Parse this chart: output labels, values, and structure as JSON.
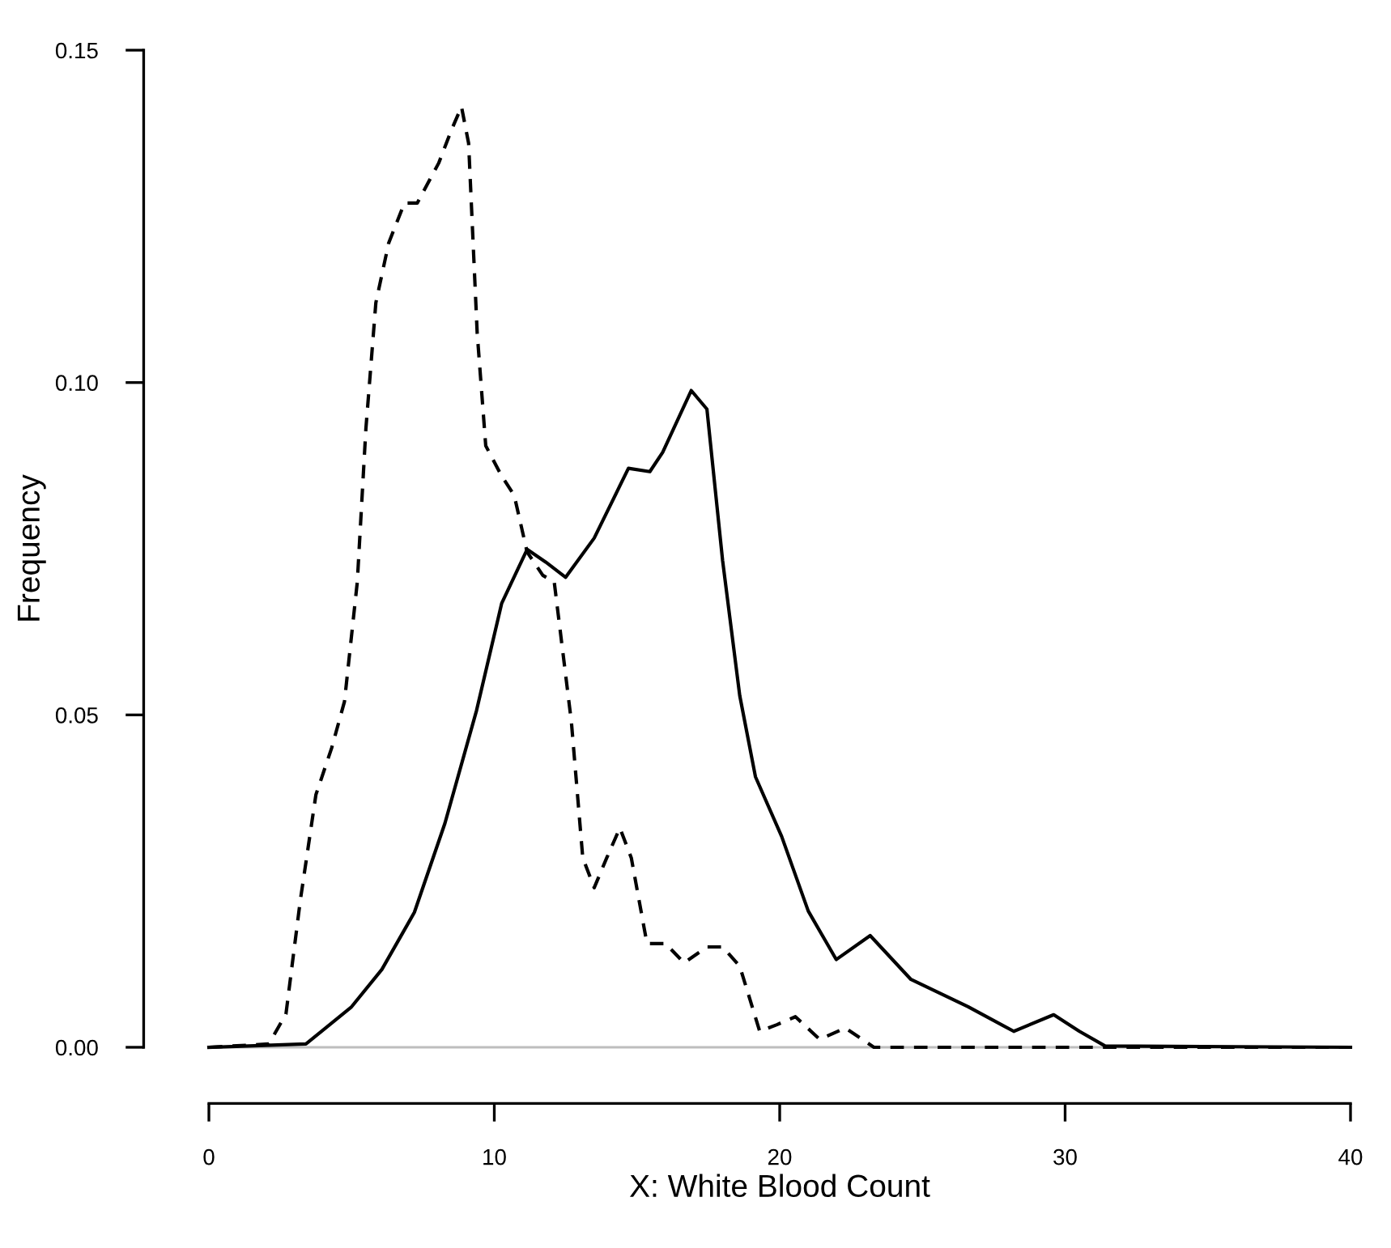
{
  "chart_data": {
    "type": "line",
    "xlabel": "X: White Blood Count",
    "ylabel": "Frequency",
    "xlim": [
      0,
      40
    ],
    "ylim": [
      0,
      0.15
    ],
    "xticks": [
      0,
      10,
      20,
      30,
      40
    ],
    "yticks": [
      {
        "value": 0,
        "label": "0.00"
      },
      {
        "value": 0.05,
        "label": "0.05"
      },
      {
        "value": 0.1,
        "label": "0.10"
      },
      {
        "value": 0.15,
        "label": "0.15"
      }
    ],
    "grid": false,
    "legend": false,
    "marker": "none",
    "ref_lines": [
      {
        "axis": "y",
        "value": 0,
        "color": "#bebebe",
        "line_style": "solid"
      }
    ],
    "series": [
      {
        "color": "#000000",
        "line_style": "solid",
        "x": [
          0,
          3.4,
          4.98,
          6.06,
          7.2,
          8.27,
          9.38,
          10.26,
          11.15,
          11.8,
          12.5,
          13.5,
          14.7,
          15.45,
          15.9,
          16.9,
          17.45,
          18.0,
          18.6,
          19.15,
          20.07,
          21.0,
          21.98,
          23.17,
          24.6,
          26.6,
          28.2,
          29.6,
          30.5,
          31.4,
          40
        ],
        "values": [
          0,
          0.0005,
          0.006,
          0.0117,
          0.0203,
          0.0337,
          0.0507,
          0.0668,
          0.0749,
          0.073,
          0.0707,
          0.0766,
          0.0871,
          0.0866,
          0.0895,
          0.0988,
          0.096,
          0.0732,
          0.0529,
          0.0407,
          0.0317,
          0.0205,
          0.0132,
          0.0168,
          0.0102,
          0.0061,
          0.0024,
          0.0049,
          0.0024,
          0.0002,
          0
        ]
      },
      {
        "color": "#000000",
        "line_style": "dashed",
        "x": [
          0,
          2.1,
          2.7,
          3.2,
          3.75,
          4.3,
          4.75,
          5.2,
          5.5,
          5.85,
          6.3,
          6.85,
          7.3,
          8.05,
          8.5,
          8.85,
          9.1,
          9.4,
          9.7,
          10.25,
          10.7,
          11.15,
          11.7,
          12.1,
          12.7,
          13.1,
          13.5,
          13.94,
          14.4,
          14.8,
          15.35,
          16.0,
          16.65,
          17.45,
          18.0,
          18.6,
          19.3,
          19.9,
          20.55,
          21.4,
          22.3,
          23.3,
          40
        ],
        "values": [
          0,
          0.0005,
          0.005,
          0.022,
          0.038,
          0.045,
          0.052,
          0.07,
          0.093,
          0.112,
          0.121,
          0.127,
          0.127,
          0.133,
          0.138,
          0.1415,
          0.136,
          0.1075,
          0.0905,
          0.086,
          0.083,
          0.0745,
          0.071,
          0.07,
          0.049,
          0.0285,
          0.024,
          0.0285,
          0.033,
          0.0285,
          0.0156,
          0.0156,
          0.0127,
          0.0151,
          0.0151,
          0.0122,
          0.0024,
          0.0034,
          0.0046,
          0.0012,
          0.0029,
          0,
          0
        ]
      }
    ]
  }
}
